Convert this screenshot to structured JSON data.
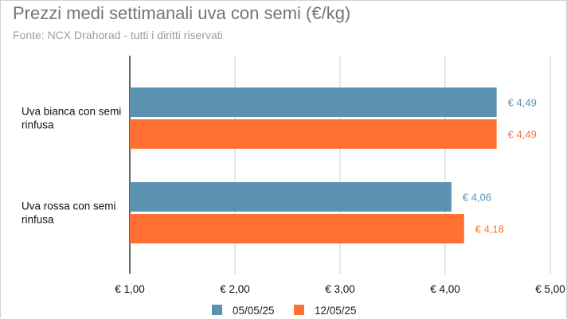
{
  "title": "Prezzi medi settimanali uva con semi (€/kg)",
  "subtitle": "Fonte: NCX Drahorad - tutti i diritti riservati",
  "colors": {
    "series1": "#5b92b0",
    "series2": "#ff7032",
    "grid": "#cccccc",
    "axis": "#333333"
  },
  "chart_data": {
    "type": "bar",
    "orientation": "horizontal",
    "categories": [
      [
        "Uva bianca con semi",
        "rinfusa"
      ],
      [
        "Uva rossa con semi",
        "rinfusa"
      ]
    ],
    "series": [
      {
        "name": "05/05/25",
        "values": [
          4.49,
          4.06
        ],
        "labels": [
          "€ 4,49",
          "€ 4,06"
        ]
      },
      {
        "name": "12/05/25",
        "values": [
          4.49,
          4.18
        ],
        "labels": [
          "€ 4,49",
          "€ 4,18"
        ]
      }
    ],
    "xlim": [
      1,
      5
    ],
    "xticks": [
      1,
      2,
      3,
      4,
      5
    ],
    "xtick_labels": [
      "€ 1,00",
      "€ 2,00",
      "€ 3,00",
      "€ 4,00",
      "€ 5,00"
    ],
    "grid": true,
    "legend_position": "bottom"
  }
}
